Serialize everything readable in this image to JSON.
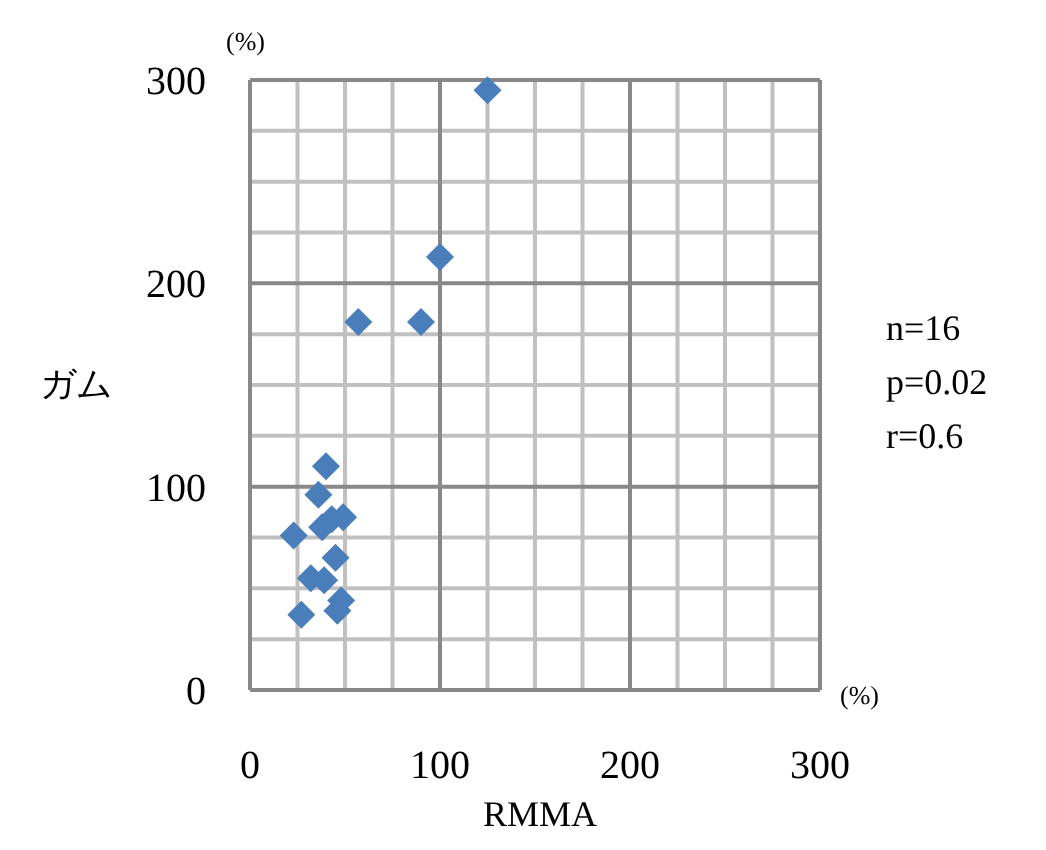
{
  "chart_data": {
    "type": "scatter",
    "xlabel": "RMMA",
    "ylabel": "ガム",
    "x": [
      125,
      100,
      57,
      90,
      40,
      36,
      23,
      49,
      43,
      38,
      45,
      32,
      39,
      48,
      46,
      27
    ],
    "series": [
      {
        "color": "#4a7ebb",
        "values": [
          295,
          213,
          181,
          181,
          110,
          96,
          76,
          85,
          84,
          80,
          65,
          55,
          54,
          44,
          39,
          37
        ]
      }
    ],
    "xlim": [
      0,
      300
    ],
    "ylim": [
      0,
      300
    ],
    "xticks": [
      0,
      100,
      200,
      300
    ],
    "yticks": [
      0,
      100,
      200,
      300
    ],
    "grid": true,
    "marker": "diamond",
    "annotations": [
      "(%)",
      "(%)",
      "n=16",
      "p=0.02",
      "r=0.6"
    ]
  }
}
